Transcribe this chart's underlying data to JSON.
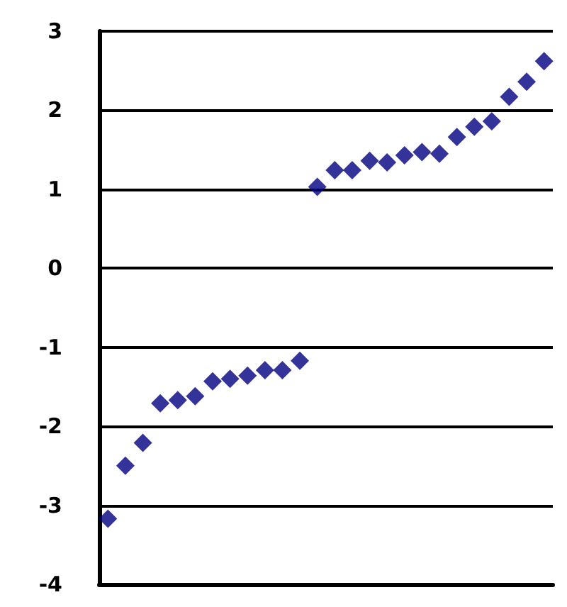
{
  "chart_data": {
    "type": "scatter",
    "categories": [
      null,
      null,
      null,
      null,
      null,
      null,
      null,
      null,
      null,
      null,
      null,
      null,
      null,
      null,
      null,
      null,
      null,
      null,
      null,
      null,
      null,
      null,
      null,
      null,
      null,
      null
    ],
    "series": [
      {
        "color": "#000080",
        "values": [
          -3.17,
          -2.5,
          -2.21,
          -1.71,
          -1.67,
          -1.62,
          -1.43,
          -1.4,
          -1.36,
          -1.29,
          -1.29,
          -1.17,
          1.03,
          1.24,
          1.24,
          1.36,
          1.34,
          1.43,
          1.47,
          1.45,
          1.66,
          1.79,
          1.86,
          2.17,
          2.36,
          2.62
        ]
      }
    ],
    "ylim": [
      -4,
      3
    ],
    "yticks": [
      -4,
      -3,
      -2,
      -1,
      0,
      1,
      2,
      3
    ],
    "grid": "y",
    "tick_labels": "y",
    "marker": "diamond"
  }
}
